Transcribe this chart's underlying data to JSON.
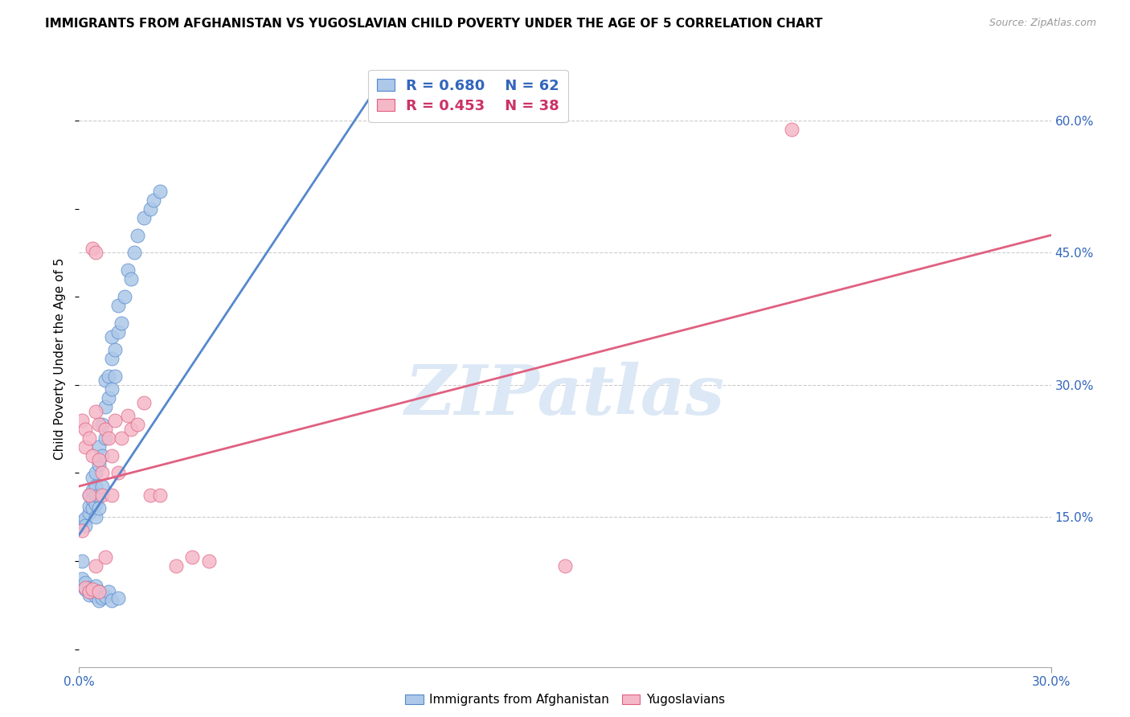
{
  "title": "IMMIGRANTS FROM AFGHANISTAN VS YUGOSLAVIAN CHILD POVERTY UNDER THE AGE OF 5 CORRELATION CHART",
  "source": "Source: ZipAtlas.com",
  "ylabel": "Child Poverty Under the Age of 5",
  "xlim": [
    0,
    0.3
  ],
  "ylim": [
    -0.02,
    0.68
  ],
  "right_yticks": [
    0.15,
    0.3,
    0.45,
    0.6
  ],
  "right_yticklabels": [
    "15.0%",
    "30.0%",
    "45.0%",
    "60.0%"
  ],
  "blue_R": 0.68,
  "blue_N": 62,
  "pink_R": 0.453,
  "pink_N": 38,
  "blue_color": "#adc8e8",
  "blue_edge_color": "#5588cc",
  "pink_color": "#f5b8c8",
  "pink_edge_color": "#e06080",
  "blue_text_color": "#3366bb",
  "pink_text_color": "#cc3366",
  "axis_tick_color": "#3366bb",
  "watermark": "ZIPatlas",
  "watermark_color": "#dce8f5",
  "background_color": "#ffffff",
  "grid_color": "#cccccc",
  "blue_scatter_x": [
    0.001,
    0.002,
    0.002,
    0.003,
    0.003,
    0.003,
    0.004,
    0.004,
    0.004,
    0.004,
    0.005,
    0.005,
    0.005,
    0.005,
    0.005,
    0.006,
    0.006,
    0.006,
    0.006,
    0.007,
    0.007,
    0.007,
    0.008,
    0.008,
    0.008,
    0.009,
    0.009,
    0.01,
    0.01,
    0.01,
    0.011,
    0.011,
    0.012,
    0.012,
    0.013,
    0.014,
    0.015,
    0.016,
    0.017,
    0.018,
    0.02,
    0.022,
    0.023,
    0.025,
    0.001,
    0.001,
    0.002,
    0.002,
    0.003,
    0.003,
    0.003,
    0.004,
    0.004,
    0.005,
    0.005,
    0.006,
    0.006,
    0.007,
    0.008,
    0.009,
    0.01,
    0.012
  ],
  "blue_scatter_y": [
    0.145,
    0.148,
    0.14,
    0.155,
    0.162,
    0.175,
    0.16,
    0.17,
    0.18,
    0.195,
    0.15,
    0.165,
    0.175,
    0.185,
    0.2,
    0.16,
    0.175,
    0.21,
    0.23,
    0.185,
    0.22,
    0.255,
    0.24,
    0.275,
    0.305,
    0.285,
    0.31,
    0.295,
    0.33,
    0.355,
    0.31,
    0.34,
    0.36,
    0.39,
    0.37,
    0.4,
    0.43,
    0.42,
    0.45,
    0.47,
    0.49,
    0.5,
    0.51,
    0.52,
    0.1,
    0.08,
    0.075,
    0.068,
    0.065,
    0.07,
    0.062,
    0.065,
    0.068,
    0.06,
    0.072,
    0.065,
    0.055,
    0.058,
    0.06,
    0.065,
    0.055,
    0.058
  ],
  "pink_scatter_x": [
    0.001,
    0.002,
    0.002,
    0.003,
    0.003,
    0.004,
    0.004,
    0.005,
    0.005,
    0.006,
    0.006,
    0.007,
    0.007,
    0.008,
    0.009,
    0.01,
    0.011,
    0.012,
    0.013,
    0.015,
    0.016,
    0.018,
    0.02,
    0.022,
    0.025,
    0.03,
    0.035,
    0.04,
    0.001,
    0.002,
    0.003,
    0.004,
    0.005,
    0.006,
    0.008,
    0.01,
    0.15,
    0.22
  ],
  "pink_scatter_y": [
    0.26,
    0.25,
    0.23,
    0.24,
    0.175,
    0.22,
    0.455,
    0.27,
    0.45,
    0.215,
    0.255,
    0.175,
    0.2,
    0.25,
    0.24,
    0.22,
    0.26,
    0.2,
    0.24,
    0.265,
    0.25,
    0.255,
    0.28,
    0.175,
    0.175,
    0.095,
    0.105,
    0.1,
    0.135,
    0.07,
    0.065,
    0.068,
    0.095,
    0.065,
    0.105,
    0.175,
    0.095,
    0.59
  ],
  "blue_trendline_x": [
    0.0,
    0.095
  ],
  "blue_trendline_y": [
    0.13,
    0.655
  ],
  "pink_trendline_x": [
    0.0,
    0.3
  ],
  "pink_trendline_y": [
    0.185,
    0.47
  ]
}
